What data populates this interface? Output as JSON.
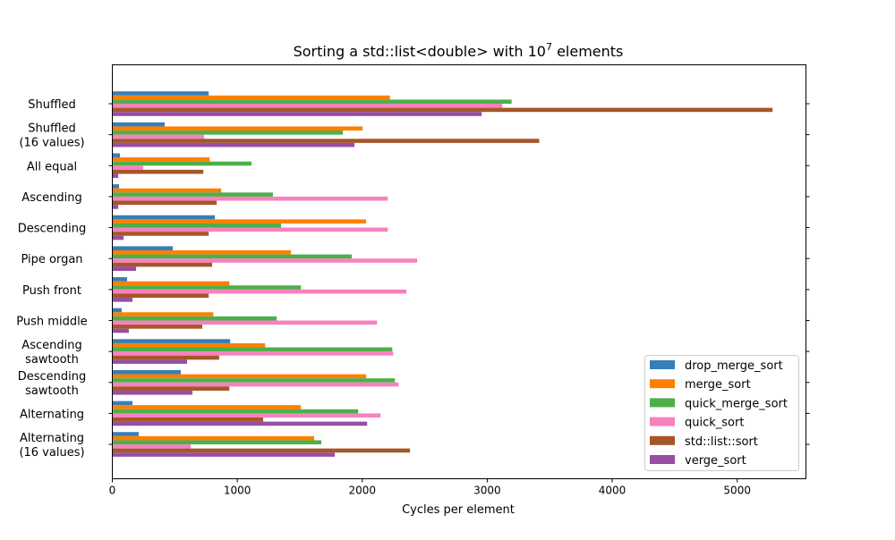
{
  "chart_data": {
    "type": "bar",
    "orientation": "horizontal",
    "title": {
      "prefix": "Sorting a std::list<double> with 10",
      "exponent": "7",
      "suffix": " elements"
    },
    "xlabel": "Cycles per element",
    "ylabel": "",
    "xlim": [
      0,
      5550
    ],
    "xticks": [
      "0",
      "1000",
      "2000",
      "3000",
      "4000",
      "5000"
    ],
    "grid": false,
    "legend_position": "lower-right",
    "categories": [
      "Shuffled",
      "Shuffled\n(16 values)",
      "All equal",
      "Ascending",
      "Descending",
      "Pipe organ",
      "Push front",
      "Push middle",
      "Ascending\nsawtooth",
      "Descending\nsawtooth",
      "Alternating",
      "Alternating\n(16 values)"
    ],
    "series": [
      {
        "name": "drop_merge_sort",
        "color": "#377eb8",
        "values": [
          771,
          419,
          61,
          54,
          820,
          484,
          118,
          75,
          943,
          548,
          161,
          211
        ]
      },
      {
        "name": "merge_sort",
        "color": "#ff7f00",
        "values": [
          2221,
          2002,
          779,
          871,
          2030,
          1429,
          936,
          808,
          1223,
          2030,
          1509,
          1615
        ]
      },
      {
        "name": "quick_merge_sort",
        "color": "#4daf4a",
        "values": [
          3195,
          1845,
          1114,
          1285,
          1350,
          1916,
          1509,
          1315,
          2240,
          2261,
          1967,
          1672
        ]
      },
      {
        "name": "quick_sort",
        "color": "#f781bf",
        "values": [
          3120,
          735,
          247,
          2204,
          2204,
          2439,
          2353,
          2118,
          2247,
          2290,
          2146,
          627
        ]
      },
      {
        "name": "std::list::sort",
        "color": "#a65628",
        "values": [
          5283,
          3416,
          728,
          835,
          771,
          799,
          771,
          720,
          855,
          936,
          1207,
          2382
        ]
      },
      {
        "name": "verge_sort",
        "color": "#984ea3",
        "values": [
          2955,
          1937,
          47,
          47,
          90,
          190,
          161,
          132,
          598,
          641,
          2039,
          1780
        ]
      }
    ]
  }
}
